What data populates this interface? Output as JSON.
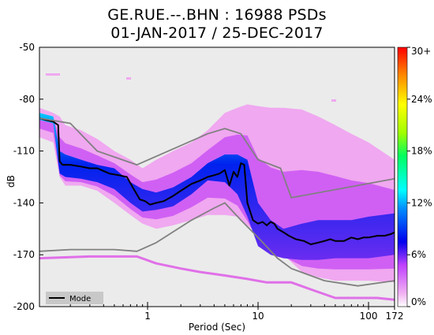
{
  "chart_data": {
    "type": "heatmap",
    "title_line1": "GE.RUE.--.BHN : 16988 PSDs",
    "title_line2": "01-JAN-2017 / 25-DEC-2017",
    "xlabel": "Period (Sec)",
    "ylabel": "dB",
    "x_scale": "log",
    "xlim": [
      0.105,
      172
    ],
    "ylim": [
      -200,
      -50
    ],
    "x_ticks": [
      {
        "value": 1,
        "label": "1"
      },
      {
        "value": 10,
        "label": "10"
      },
      {
        "value": 100,
        "label": "100"
      },
      {
        "value": 172,
        "label": "172"
      }
    ],
    "y_ticks": [
      {
        "value": -50,
        "label": "-50"
      },
      {
        "value": -80,
        "label": "-80"
      },
      {
        "value": -110,
        "label": "-110"
      },
      {
        "value": -140,
        "label": "-140"
      },
      {
        "value": -170,
        "label": "-170"
      },
      {
        "value": -200,
        "label": "-200"
      }
    ],
    "colorbar": {
      "min_label": "0%",
      "max_label": "30+",
      "ticks": [
        {
          "value": 0,
          "label": "0%"
        },
        {
          "value": 6,
          "label": "6%"
        },
        {
          "value": 12,
          "label": "12%"
        },
        {
          "value": 18,
          "label": "18%"
        },
        {
          "value": 24,
          "label": "24%"
        },
        {
          "value": 30,
          "label": "30+"
        }
      ]
    },
    "legend": {
      "position": "bottom-left",
      "entries": [
        "Mode"
      ]
    },
    "colors": {
      "background": "#ebebeb",
      "mode": "#000000",
      "noise_models": "#808080",
      "low_density": "#f0a8f0",
      "high_density": "#0000cc"
    },
    "density_band": {
      "periods": [
        0.105,
        0.14,
        0.16,
        0.18,
        0.25,
        0.35,
        0.5,
        0.7,
        0.9,
        1.2,
        1.7,
        2.5,
        3.5,
        5,
        6.5,
        8,
        10,
        13,
        17,
        25,
        35,
        50,
        70,
        100,
        172
      ],
      "outer_upper": [
        -85,
        -88,
        -90,
        -95,
        -98,
        -103,
        -110,
        -115,
        -120,
        -115,
        -110,
        -105,
        -98,
        -88,
        -85,
        -83,
        -84,
        -85,
        -85,
        -86,
        -90,
        -95,
        -100,
        -105,
        -115
      ],
      "outer_lower": [
        -102,
        -105,
        -125,
        -130,
        -130,
        -133,
        -140,
        -147,
        -152,
        -155,
        -153,
        -150,
        -147,
        -147,
        -148,
        -153,
        -158,
        -160,
        -170,
        -180,
        -183,
        -185,
        -185,
        -185,
        -186
      ],
      "inner_upper": [
        -88,
        -90,
        -110,
        -112,
        -115,
        -118,
        -120,
        -128,
        -132,
        -134,
        -131,
        -125,
        -117,
        -112,
        -112,
        -115,
        -140,
        -150,
        -155,
        -152,
        -150,
        -150,
        -150,
        -148,
        -146
      ],
      "inner_lower": [
        -92,
        -94,
        -123,
        -125,
        -126,
        -128,
        -132,
        -140,
        -145,
        -144,
        -142,
        -135,
        -127,
        -128,
        -135,
        -148,
        -165,
        -170,
        -172,
        -173,
        -173,
        -172,
        -172,
        -172,
        -170
      ]
    },
    "series": [
      {
        "name": "Mode",
        "x": [
          0.105,
          0.12,
          0.14,
          0.155,
          0.16,
          0.17,
          0.2,
          0.25,
          0.3,
          0.35,
          0.45,
          0.55,
          0.65,
          0.75,
          0.85,
          0.95,
          1.05,
          1.2,
          1.4,
          1.7,
          2.0,
          2.5,
          3.0,
          3.5,
          4.0,
          4.5,
          5.0,
          5.5,
          6.0,
          6.5,
          7.0,
          7.5,
          8.0,
          9.0,
          10,
          11,
          12,
          13,
          14,
          15,
          17,
          19,
          22,
          26,
          30,
          35,
          40,
          45,
          50,
          60,
          70,
          80,
          90,
          100,
          120,
          140,
          160,
          172
        ],
        "y": [
          -91,
          -92,
          -93,
          -95,
          -116,
          -118,
          -118,
          -119,
          -120,
          -120,
          -123,
          -124,
          -125,
          -132,
          -138,
          -139,
          -141,
          -140,
          -139,
          -136,
          -133,
          -129,
          -127,
          -125,
          -124,
          -123,
          -121,
          -130,
          -122,
          -125,
          -117,
          -118,
          -140,
          -150,
          -152,
          -151,
          -153,
          -151,
          -152,
          -155,
          -157,
          -159,
          -161,
          -162,
          -164,
          -163,
          -162,
          -161,
          -162,
          -162,
          -160,
          -161,
          -160,
          -160,
          -159,
          -159,
          -158,
          -157
        ]
      },
      {
        "name": "high noise model",
        "x": [
          0.105,
          0.2,
          0.35,
          0.8,
          3.5,
          5,
          7,
          10,
          16,
          20,
          172
        ],
        "y": [
          -91,
          -94,
          -110,
          -118,
          -100,
          -97,
          -100,
          -115,
          -120,
          -137,
          -126
        ]
      },
      {
        "name": "low noise model",
        "x": [
          0.105,
          0.2,
          0.5,
          0.8,
          1.2,
          2.5,
          4,
          5,
          7,
          10,
          15,
          20,
          40,
          80,
          172
        ],
        "y": [
          -168,
          -167,
          -167,
          -168,
          -163,
          -150,
          -143,
          -140,
          -150,
          -160,
          -172,
          -178,
          -185,
          -188,
          -185
        ]
      },
      {
        "name": "low outlier band",
        "x": [
          0.105,
          0.3,
          0.8,
          1.2,
          2,
          3,
          5,
          8,
          12,
          20,
          30,
          50,
          80,
          120,
          172
        ],
        "y": [
          -172,
          -171,
          -171,
          -175,
          -178,
          -180,
          -182,
          -184,
          -186,
          -186,
          -190,
          -195,
          -195,
          -195,
          -196
        ]
      }
    ]
  }
}
